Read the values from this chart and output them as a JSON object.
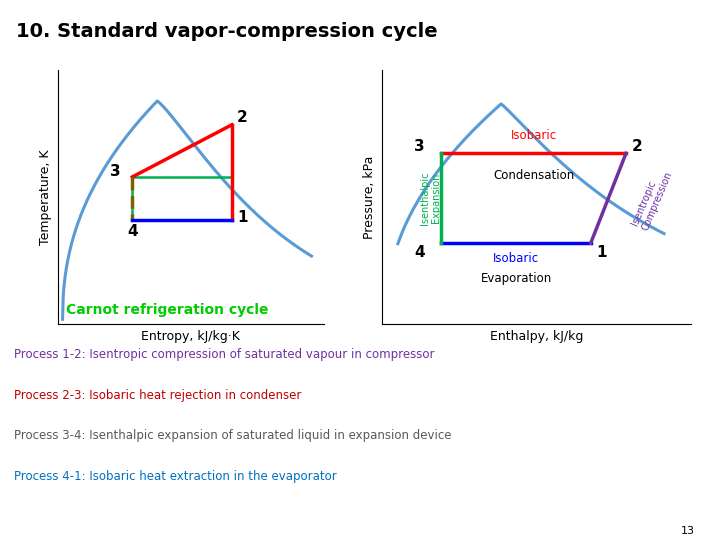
{
  "title": "10. Standard vapor-compression cycle",
  "title_bg": "#ffff00",
  "bg_color": "#ffffff",
  "left_xlabel": "Entropy, kJ/kg·K",
  "left_ylabel": "Temperature, K",
  "right_xlabel": "Enthalpy, kJ/kg",
  "right_ylabel": "Pressure, kPa",
  "carnot_label": "Carnot refrigeration cycle",
  "carnot_color": "#00cc00",
  "process_lines": [
    {
      "text": "Process 1-2: Isentropic compression of saturated vapour in compressor",
      "color": "#7030a0"
    },
    {
      "text": "Process 2-3: Isobaric heat rejection in condenser",
      "color": "#c00000"
    },
    {
      "text": "Process 3-4: Isenthalpic expansion of saturated liquid in expansion device",
      "color": "#595959"
    },
    {
      "text": "Process 4-1: Isobaric heat extraction in the evaporator",
      "color": "#0070c0"
    }
  ],
  "page_num": "13"
}
